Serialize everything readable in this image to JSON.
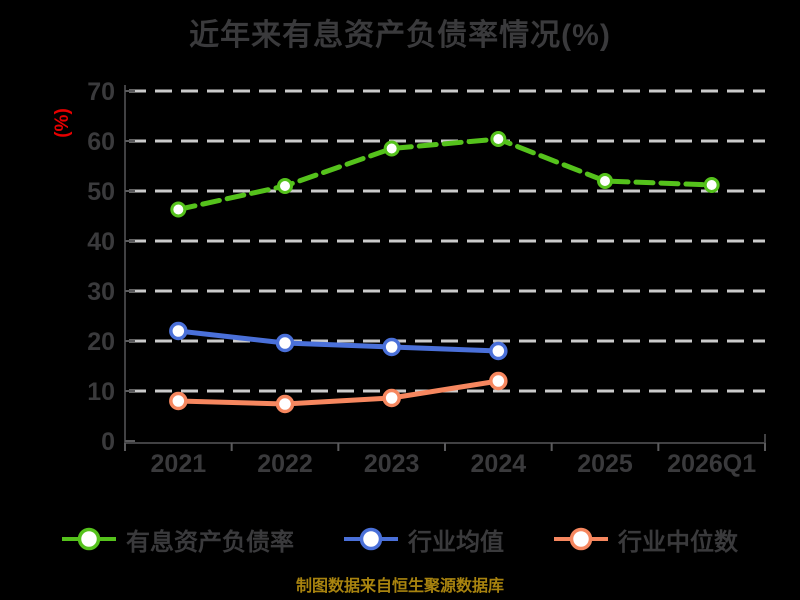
{
  "title": "近年来有息资产负债率情况(%)",
  "y_axis_label": "(%)",
  "footer": "制图数据来自恒生聚源数据库",
  "colors": {
    "background": "#000000",
    "title_text": "#3a3a3c",
    "tick_text": "#3a3a3c",
    "axis_line": "#414143",
    "gridline": "#cbcbcb",
    "y_label_red": "#e60000",
    "footer_gold": "#a8830f",
    "marker_fill": "#ffffff"
  },
  "chart_data": {
    "type": "line",
    "title": "近年来有息资产负债率情况(%)",
    "xlabel": "",
    "ylabel": "(%)",
    "categories": [
      "2021",
      "2022",
      "2023",
      "2024",
      "2025",
      "2026Q1"
    ],
    "series": [
      {
        "name": "有息资产负债率",
        "color": "#55c21c",
        "line_style": "dashed",
        "marker": "circle-white-fill",
        "values": [
          46.3,
          51.0,
          58.5,
          60.4,
          52.0,
          51.2
        ]
      },
      {
        "name": "行业均值",
        "color": "#4a70d9",
        "line_style": "solid",
        "marker": "circle-white-fill",
        "values": [
          22.0,
          19.6,
          18.8,
          18.0
        ]
      },
      {
        "name": "行业中位数",
        "color": "#f6875f",
        "line_style": "solid",
        "marker": "circle-white-fill",
        "values": [
          8.0,
          7.4,
          8.6,
          12.0
        ]
      }
    ],
    "ylim": [
      0,
      70
    ],
    "y_ticks": [
      0,
      10,
      20,
      30,
      40,
      50,
      60,
      70
    ],
    "grid": "horizontal-dashed",
    "legend_position": "bottom"
  },
  "legend": {
    "items": [
      {
        "label": "有息资产负债率"
      },
      {
        "label": "行业均值"
      },
      {
        "label": "行业中位数"
      }
    ]
  }
}
